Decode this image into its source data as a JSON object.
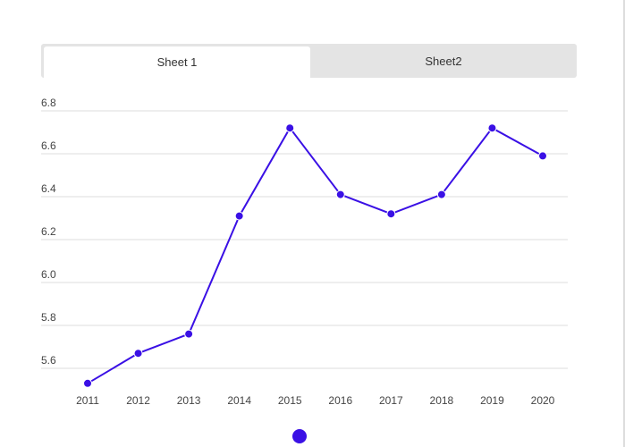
{
  "tabs": [
    "Sheet 1",
    "Sheet2"
  ],
  "chart_data": {
    "type": "line",
    "categories": [
      "2011",
      "2012",
      "2013",
      "2014",
      "2015",
      "2016",
      "2017",
      "2018",
      "2019",
      "2020"
    ],
    "series": [
      {
        "color": "#3a10e5",
        "values": [
          5.53,
          5.67,
          5.76,
          6.31,
          6.72,
          6.41,
          6.32,
          6.41,
          6.72,
          6.59
        ]
      }
    ],
    "ylim": [
      5.52,
      6.85
    ],
    "yticks": [
      5.6,
      5.8,
      {
        "value": 6,
        "label": "6.0"
      },
      6.2,
      6.4,
      6.6,
      6.8
    ],
    "grid": true
  }
}
